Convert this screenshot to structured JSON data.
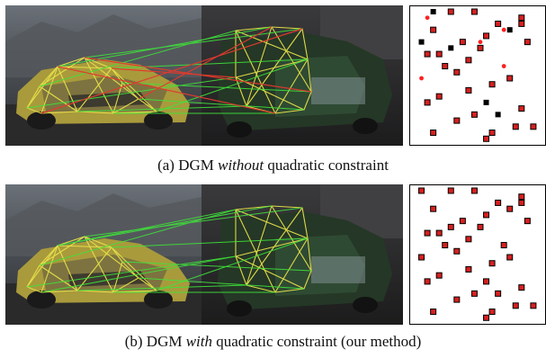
{
  "figure": {
    "panels": [
      {
        "id": "a",
        "caption_prefix": "(a)  DGM ",
        "caption_em": "without",
        "caption_suffix": " quadratic constraint",
        "black_cells": [
          [
            0,
            3
          ],
          [
            3,
            16
          ],
          [
            5,
            1
          ],
          [
            6,
            6
          ],
          [
            15,
            12
          ],
          [
            17,
            14
          ]
        ],
        "red_dots": [
          [
            1,
            2
          ],
          [
            11,
            1
          ],
          [
            5,
            11
          ],
          [
            9,
            15
          ],
          [
            3,
            15
          ]
        ],
        "red_squares": [
          [
            0,
            6
          ],
          [
            0,
            10
          ],
          [
            1,
            18
          ],
          [
            2,
            18
          ],
          [
            2,
            14
          ],
          [
            3,
            3
          ],
          [
            4,
            12
          ],
          [
            5,
            19
          ],
          [
            5,
            8
          ],
          [
            6,
            11
          ],
          [
            7,
            2
          ],
          [
            7,
            4
          ],
          [
            8,
            9
          ],
          [
            9,
            5
          ],
          [
            10,
            7
          ],
          [
            11,
            16
          ],
          [
            12,
            13
          ],
          [
            13,
            9
          ],
          [
            14,
            4
          ],
          [
            15,
            2
          ],
          [
            16,
            18
          ],
          [
            17,
            10
          ],
          [
            18,
            7
          ],
          [
            19,
            20
          ],
          [
            19,
            17
          ],
          [
            20,
            3
          ],
          [
            20,
            13
          ],
          [
            21,
            12
          ]
        ]
      },
      {
        "id": "b",
        "caption_prefix": "(b)  DGM ",
        "caption_em": "with",
        "caption_suffix": " quadratic constraint (our method)",
        "black_cells": [],
        "red_dots": [],
        "red_squares": [
          [
            0,
            6
          ],
          [
            0,
            10
          ],
          [
            1,
            18
          ],
          [
            2,
            18
          ],
          [
            2,
            14
          ],
          [
            3,
            3
          ],
          [
            4,
            12
          ],
          [
            5,
            19
          ],
          [
            5,
            8
          ],
          [
            6,
            11
          ],
          [
            7,
            2
          ],
          [
            7,
            4
          ],
          [
            8,
            9
          ],
          [
            9,
            5
          ],
          [
            10,
            7
          ],
          [
            11,
            16
          ],
          [
            12,
            13
          ],
          [
            13,
            9
          ],
          [
            14,
            4
          ],
          [
            15,
            2
          ],
          [
            16,
            18
          ],
          [
            17,
            10
          ],
          [
            18,
            7
          ],
          [
            19,
            20
          ],
          [
            19,
            17
          ],
          [
            20,
            3
          ],
          [
            20,
            13
          ],
          [
            21,
            12
          ],
          [
            0,
            1
          ],
          [
            3,
            16
          ],
          [
            6,
            6
          ],
          [
            15,
            12
          ],
          [
            17,
            14
          ],
          [
            11,
            1
          ],
          [
            9,
            15
          ]
        ]
      }
    ]
  }
}
